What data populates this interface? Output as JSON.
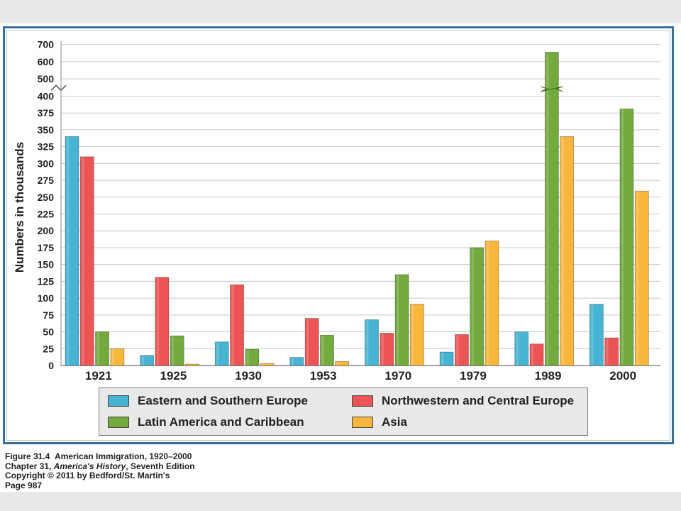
{
  "chart_data": {
    "type": "bar",
    "title": "",
    "xlabel": "",
    "ylabel": "Numbers in thousands",
    "categories": [
      "1921",
      "1925",
      "1930",
      "1953",
      "1970",
      "1979",
      "1989",
      "2000"
    ],
    "y_ticks": [
      "0",
      "25",
      "50",
      "75",
      "100",
      "125",
      "150",
      "175",
      "200",
      "225",
      "250",
      "275",
      "300",
      "325",
      "350",
      "375",
      "400",
      "500",
      "600",
      "700"
    ],
    "y_scale_note": "broken axis: linear 0–400 in steps of 25, then 400–700 compressed in steps of 100",
    "series": [
      {
        "name": "Eastern and Southern Europe",
        "color": "#46b4d2",
        "values": [
          340,
          15,
          35,
          12,
          68,
          20,
          50,
          91
        ]
      },
      {
        "name": "Northwestern and Central Europe",
        "color": "#ec5455",
        "values": [
          310,
          131,
          120,
          70,
          48,
          46,
          32,
          41
        ]
      },
      {
        "name": "Latin America and Caribbean",
        "color": "#73a93d",
        "values": [
          50,
          44,
          24,
          45,
          135,
          175,
          655,
          381
        ]
      },
      {
        "name": "Asia",
        "color": "#f7b73d",
        "values": [
          25,
          2,
          3,
          6,
          91,
          185,
          340,
          259
        ]
      }
    ],
    "grid": true,
    "legend_position": "bottom"
  },
  "caption": {
    "figure_prefix": "Figure 31.4",
    "figure_title": "American Immigration, 1920–2000",
    "chapter_prefix": "Chapter 31, ",
    "book_title": "America's History",
    "edition": ", Seventh Edition",
    "copyright": "Copyright © 2011 by Bedford/St. Martin's",
    "page": "Page 987"
  }
}
